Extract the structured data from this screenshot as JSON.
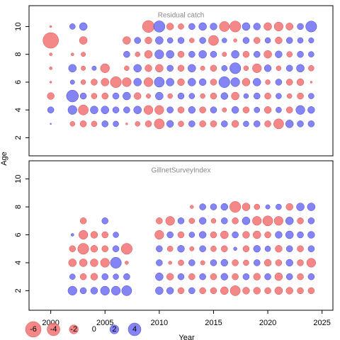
{
  "chart_data": [
    {
      "type": "bubble",
      "title": "Residual catch",
      "ylabel": "Age",
      "x": [
        2000,
        2002,
        2003,
        2004,
        2005,
        2006,
        2007,
        2008,
        2009,
        2010,
        2011,
        2012,
        2013,
        2014,
        2015,
        2016,
        2017,
        2018,
        2019,
        2020,
        2021,
        2022,
        2023,
        2024
      ],
      "y": [
        10,
        9,
        8,
        7,
        6,
        5,
        4,
        3
      ],
      "values": [
        [
          -0.1,
          0.8,
          1.5,
          null,
          null,
          null,
          null,
          null,
          -3.5,
          3.2,
          -1.2,
          -0.8,
          1,
          1.5,
          1.2,
          -2.5,
          -3,
          1.5,
          1.2,
          -1.5,
          -2,
          -1.3,
          1,
          3
        ],
        [
          -6,
          null,
          -1.5,
          null,
          null,
          null,
          -1.5,
          1,
          -1.2,
          1.5,
          0.8,
          1,
          -0.6,
          1,
          -2.5,
          0.6,
          -0.3,
          1,
          -1,
          0.8,
          -1.2,
          1,
          0.8,
          0.7
        ],
        [
          -0.2,
          -0.2,
          -0.5,
          null,
          null,
          null,
          1,
          -0.6,
          -1.5,
          2,
          1.5,
          -1,
          1,
          1.5,
          1,
          -0.5,
          1.5,
          -1,
          1,
          -1.5,
          1.2,
          -0.8,
          1,
          0.8
        ],
        [
          -0.2,
          1.5,
          -0.5,
          0.5,
          -2,
          null,
          -0.6,
          1.5,
          -1.2,
          -1.5,
          1,
          -1,
          1.5,
          -0.5,
          -1,
          0.8,
          3,
          -0.6,
          -2,
          1.2,
          -0.6,
          1,
          1.5,
          -0.8
        ],
        [
          -0.1,
          0.5,
          -0.6,
          -1,
          -1.5,
          -3,
          -2,
          1.5,
          -2,
          2.5,
          1.5,
          -1.2,
          1.5,
          1.2,
          -1,
          3,
          2,
          -1.5,
          1.5,
          -0.6,
          1,
          -1,
          -1.2,
          -0.1
        ],
        [
          -1.2,
          3.5,
          1,
          -0.8,
          -1,
          1,
          1.5,
          -1.2,
          -0.5,
          1.5,
          -0.6,
          1,
          0.8,
          -0.6,
          -1,
          1.2,
          -1.5,
          0.6,
          1,
          -1,
          0.8,
          -0.6,
          -1,
          0.8
        ],
        [
          1,
          2,
          -2.5,
          1.5,
          1.5,
          1,
          1,
          1.5,
          -2,
          -2,
          1,
          -1,
          1.2,
          -1,
          1,
          -0.5,
          1.2,
          -1,
          0.8,
          -1.2,
          0.8,
          -1,
          2,
          1.2
        ],
        [
          0.05,
          -0.6,
          -1,
          -0.8,
          1,
          0.8,
          -0.1,
          -0.6,
          -1,
          -2.5,
          1.2,
          -0.8,
          1,
          -1,
          -1,
          1,
          -1.2,
          0.8,
          1,
          -1,
          -2.5,
          1.5,
          1,
          1
        ]
      ],
      "xlim": [
        1998,
        2026
      ],
      "ylim": [
        0.7,
        11.5
      ],
      "yticks": [
        2,
        4,
        6,
        8,
        10
      ],
      "positive_color": "#6f6ff2",
      "negative_color": "#f27373"
    },
    {
      "type": "bubble",
      "title": "GillnetSurveyIndex",
      "xlabel": "Year",
      "x": [
        2002,
        2003,
        2004,
        2005,
        2006,
        2007,
        2010,
        2011,
        2012,
        2013,
        2014,
        2015,
        2016,
        2017,
        2018,
        2019,
        2020,
        2021,
        2022,
        2023,
        2024
      ],
      "y": [
        8,
        7,
        6,
        5,
        4,
        3,
        2
      ],
      "values": [
        [
          null,
          null,
          null,
          null,
          null,
          null,
          null,
          null,
          null,
          -0.3,
          1,
          1,
          1.2,
          -3,
          -1.5,
          -0.8,
          0.5,
          0.8,
          -1.2,
          1.5,
          1.5
        ],
        [
          null,
          -1,
          null,
          1,
          null,
          null,
          -1,
          -2,
          1,
          -0.8,
          1.2,
          -0.6,
          1,
          -1,
          1.5,
          -2,
          -2.5,
          -2,
          1.5,
          -1,
          1
        ],
        [
          0.2,
          -2,
          -1.2,
          -1,
          0.8,
          null,
          -2,
          1,
          -1,
          0.8,
          1.2,
          -1,
          -1.5,
          1,
          -1.2,
          -1.5,
          -1,
          1.2,
          1.5,
          1,
          1.2
        ],
        [
          -1,
          -3,
          -1.2,
          -1,
          1,
          -3,
          1,
          -0.8,
          1.2,
          -0.5,
          1,
          -0.8,
          -1,
          0.3,
          -1,
          1.2,
          0.8,
          -1.2,
          1,
          -1,
          1
        ],
        [
          -1.5,
          -1.5,
          -1.5,
          -2,
          3,
          -0.3,
          1,
          -0.3,
          -0.8,
          1,
          -0.5,
          1,
          1.2,
          -1,
          -0.8,
          1,
          -1.2,
          -1,
          1.2,
          -1,
          -2
        ],
        [
          0.8,
          -1,
          -1.2,
          1,
          0.8,
          1,
          1.5,
          -1.2,
          1,
          -1,
          1,
          -1,
          1.2,
          -1,
          1,
          -1.2,
          1,
          -1.5,
          1,
          -1,
          1
        ],
        [
          2,
          1,
          1.2,
          2,
          2,
          2.5,
          1.5,
          1.2,
          -1,
          1,
          -1,
          -1,
          -1.5,
          -2.5,
          -1.2,
          -1.2,
          -1,
          -1.5,
          -1.2,
          -1,
          -1
        ]
      ],
      "xlim": [
        1998,
        2026
      ],
      "ylim": [
        0.6,
        11.3
      ],
      "yticks": [
        2,
        4,
        6,
        8,
        10
      ],
      "xticks": [
        2000,
        2005,
        2010,
        2015,
        2020,
        2025
      ],
      "legend_values": [
        -6,
        -4,
        -2,
        0,
        2,
        4
      ],
      "positive_color": "#6f6ff2",
      "negative_color": "#f27373"
    }
  ]
}
